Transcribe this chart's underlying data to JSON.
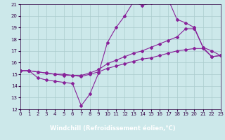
{
  "xlabel": "Windchill (Refroidissement éolien,°C)",
  "xlabel_bg": "#330044",
  "xlabel_fg": "#ffffff",
  "xlim": [
    0,
    23
  ],
  "ylim": [
    12,
    21
  ],
  "xticks": [
    0,
    1,
    2,
    3,
    4,
    5,
    6,
    7,
    8,
    9,
    10,
    11,
    12,
    13,
    14,
    15,
    16,
    17,
    18,
    19,
    20,
    21,
    22,
    23
  ],
  "yticks": [
    12,
    13,
    14,
    15,
    16,
    17,
    18,
    19,
    20,
    21
  ],
  "bg_color": "#cce8ea",
  "grid_color": "#aacccc",
  "line_color": "#882299",
  "line1_y": [
    15.3,
    15.3,
    14.7,
    14.5,
    14.4,
    14.3,
    14.2,
    12.3,
    13.3,
    15.1,
    17.7,
    19.0,
    20.0,
    21.2,
    20.9,
    21.1,
    21.3,
    21.4,
    19.7,
    19.4,
    19.0,
    17.3,
    16.5,
    16.6
  ],
  "line2_y": [
    15.3,
    15.3,
    15.2,
    15.1,
    15.0,
    15.0,
    14.9,
    14.9,
    15.1,
    15.4,
    15.9,
    16.2,
    16.5,
    16.8,
    17.0,
    17.3,
    17.6,
    17.9,
    18.2,
    18.9,
    18.9,
    17.3,
    17.0,
    16.6
  ],
  "line3_y": [
    15.3,
    15.3,
    15.2,
    15.1,
    15.0,
    14.9,
    14.9,
    14.8,
    15.0,
    15.2,
    15.5,
    15.7,
    15.9,
    16.1,
    16.3,
    16.4,
    16.6,
    16.8,
    17.0,
    17.1,
    17.2,
    17.2,
    16.5,
    16.6
  ]
}
